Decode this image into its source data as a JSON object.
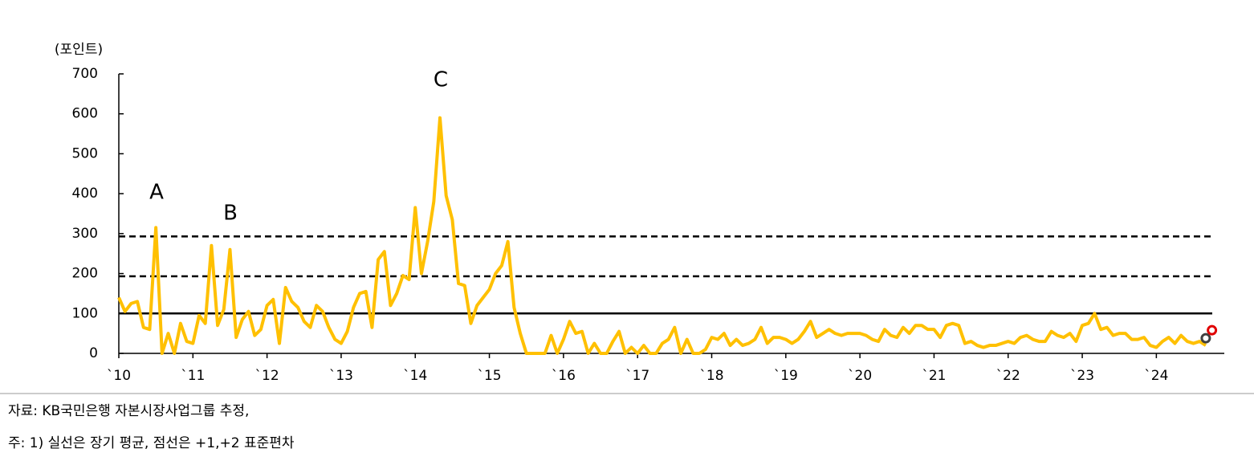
{
  "chart_data": {
    "type": "line",
    "y_label": "(포인트)",
    "x": [
      0,
      1,
      2,
      3,
      4,
      5,
      6,
      7,
      8,
      9,
      10,
      11,
      12,
      13,
      14,
      15,
      16,
      17,
      18,
      19,
      20,
      21,
      22,
      23,
      24,
      25,
      26,
      27,
      28,
      29,
      30,
      31,
      32,
      33,
      34,
      35,
      36,
      37,
      38,
      39,
      40,
      41,
      42,
      43,
      44,
      45,
      46,
      47,
      48,
      49,
      50,
      51,
      52,
      53,
      54,
      55,
      56,
      57,
      58,
      59,
      60,
      61,
      62,
      63,
      64,
      65,
      66,
      67,
      68,
      69,
      70,
      71,
      72,
      73,
      74,
      75,
      76,
      77,
      78,
      79,
      80,
      81,
      82,
      83,
      84,
      85,
      86,
      87,
      88,
      89,
      90,
      91,
      92,
      93,
      94,
      95,
      96,
      97,
      98,
      99,
      100,
      101,
      102,
      103,
      104,
      105,
      106,
      107,
      108,
      109,
      110,
      111,
      112,
      113,
      114,
      115,
      116,
      117,
      118,
      119,
      120,
      121,
      122,
      123,
      124,
      125,
      126,
      127,
      128,
      129,
      130,
      131,
      132,
      133,
      134,
      135,
      136,
      137,
      138,
      139,
      140,
      141,
      142,
      143,
      144,
      145,
      146,
      147,
      148,
      149,
      150,
      151,
      152,
      153,
      154,
      155,
      156,
      157,
      158,
      159,
      160,
      161,
      162,
      163,
      164,
      165,
      166,
      167,
      168,
      169,
      170,
      171,
      172,
      173,
      174,
      175,
      176
    ],
    "series": [
      {
        "color": "#ffc000",
        "values": [
          140,
          105,
          125,
          130,
          65,
          60,
          315,
          0,
          50,
          0,
          75,
          30,
          25,
          95,
          75,
          270,
          70,
          110,
          260,
          40,
          85,
          105,
          45,
          60,
          120,
          135,
          25,
          165,
          130,
          115,
          80,
          65,
          120,
          105,
          65,
          35,
          25,
          55,
          115,
          150,
          155,
          65,
          235,
          255,
          120,
          150,
          195,
          185,
          365,
          200,
          280,
          380,
          590,
          395,
          335,
          175,
          170,
          75,
          120,
          140,
          160,
          200,
          220,
          280,
          115,
          50,
          0,
          0,
          0,
          0,
          45,
          0,
          35,
          80,
          50,
          55,
          0,
          25,
          0,
          0,
          30,
          55,
          0,
          15,
          0,
          20,
          0,
          0,
          25,
          35,
          65,
          0,
          35,
          0,
          0,
          10,
          40,
          35,
          50,
          20,
          35,
          20,
          25,
          35,
          65,
          25,
          40,
          40,
          35,
          25,
          35,
          55,
          80,
          40,
          50,
          60,
          50,
          45,
          50,
          50,
          50,
          45,
          35,
          30,
          60,
          45,
          40,
          65,
          50,
          70,
          70,
          60,
          60,
          40,
          70,
          75,
          70,
          25,
          30,
          20,
          15,
          20,
          20,
          25,
          30,
          25,
          40,
          45,
          35,
          30,
          30,
          55,
          45,
          40,
          50,
          30,
          70,
          75,
          100,
          60,
          65,
          45,
          50,
          50,
          35,
          35,
          40,
          20,
          15,
          30,
          40,
          25,
          45,
          30,
          25,
          30,
          20
        ]
      }
    ],
    "markers": [
      {
        "x": 176,
        "value": 38,
        "color": "#404040"
      },
      {
        "x": 177,
        "value": 58,
        "color": "#e00000"
      }
    ],
    "reference_lines": [
      {
        "value": 100,
        "style": "solid"
      },
      {
        "value": 193,
        "style": "dashed"
      },
      {
        "value": 293,
        "style": "dashed"
      }
    ],
    "annotations": [
      "A",
      "B",
      "C"
    ],
    "xlim": [
      0,
      179
    ],
    "ylim": [
      0,
      700
    ],
    "yticks": [
      0,
      100,
      200,
      300,
      400,
      500,
      600,
      700
    ],
    "xticks": [
      {
        "value": 0,
        "label": "`10"
      },
      {
        "value": 12,
        "label": "`11"
      },
      {
        "value": 24,
        "label": "`12"
      },
      {
        "value": 36,
        "label": "`13"
      },
      {
        "value": 48,
        "label": "`14"
      },
      {
        "value": 60,
        "label": "`15"
      },
      {
        "value": 72,
        "label": "`16"
      },
      {
        "value": 84,
        "label": "`17"
      },
      {
        "value": 96,
        "label": "`18"
      },
      {
        "value": 108,
        "label": "`19"
      },
      {
        "value": 120,
        "label": "`20"
      },
      {
        "value": 132,
        "label": "`21"
      },
      {
        "value": 144,
        "label": "`22"
      },
      {
        "value": 156,
        "label": "`23"
      },
      {
        "value": 168,
        "label": "`24"
      }
    ],
    "notes": [
      "자료: KB국민은행 자본시장사업그룹 추정,",
      "주: 1) 실선은 장기 평균, 점선은 +1,+2 표준편차"
    ]
  }
}
